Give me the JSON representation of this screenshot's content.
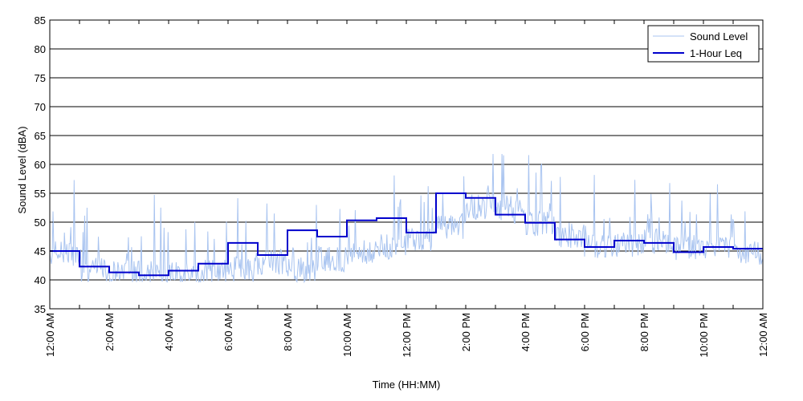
{
  "chart_data": {
    "type": "line",
    "title": "",
    "xlabel": "Time (HH:MM)",
    "ylabel": "Sound Level (dBA)",
    "ylim": [
      35,
      85
    ],
    "xlim_hours": [
      0,
      24
    ],
    "y_ticks": [
      "35",
      "40",
      "45",
      "50",
      "55",
      "60",
      "65",
      "70",
      "75",
      "80",
      "85"
    ],
    "x_ticks": [
      "12:00 AM",
      "2:00 AM",
      "4:00 AM",
      "6:00 AM",
      "8:00 AM",
      "10:00 AM",
      "12:00 PM",
      "2:00 PM",
      "4:00 PM",
      "6:00 PM",
      "8:00 PM",
      "10:00 PM",
      "12:00 AM"
    ],
    "grid": "horizontal",
    "legend_position": "top-right",
    "series": [
      {
        "name": "Sound Level",
        "style": "thin-line",
        "color": "#a9c4f0",
        "note": "continuous measurement, values approximated",
        "base": [
          44.0,
          41.0,
          40.5,
          40.3,
          40.2,
          40.8,
          41.2,
          42.5,
          41.0,
          43.0,
          44.0,
          45.0,
          46.5,
          48.5,
          52.0,
          51.0,
          49.0,
          47.0,
          45.0,
          45.5,
          46.0,
          45.0,
          45.0,
          44.0
        ]
      },
      {
        "name": "1-Hour Leq",
        "style": "step",
        "color": "#0000cc",
        "values": [
          45.0,
          42.3,
          41.3,
          40.8,
          41.6,
          42.8,
          46.4,
          44.3,
          48.6,
          47.5,
          50.3,
          50.7,
          48.2,
          55.0,
          54.2,
          51.3,
          49.9,
          47.0,
          45.7,
          46.8,
          46.4,
          44.8,
          45.7,
          45.4
        ]
      }
    ]
  },
  "colors": {
    "raw": "#a9c4f0",
    "leq": "#0000cc",
    "grid": "#000000"
  }
}
